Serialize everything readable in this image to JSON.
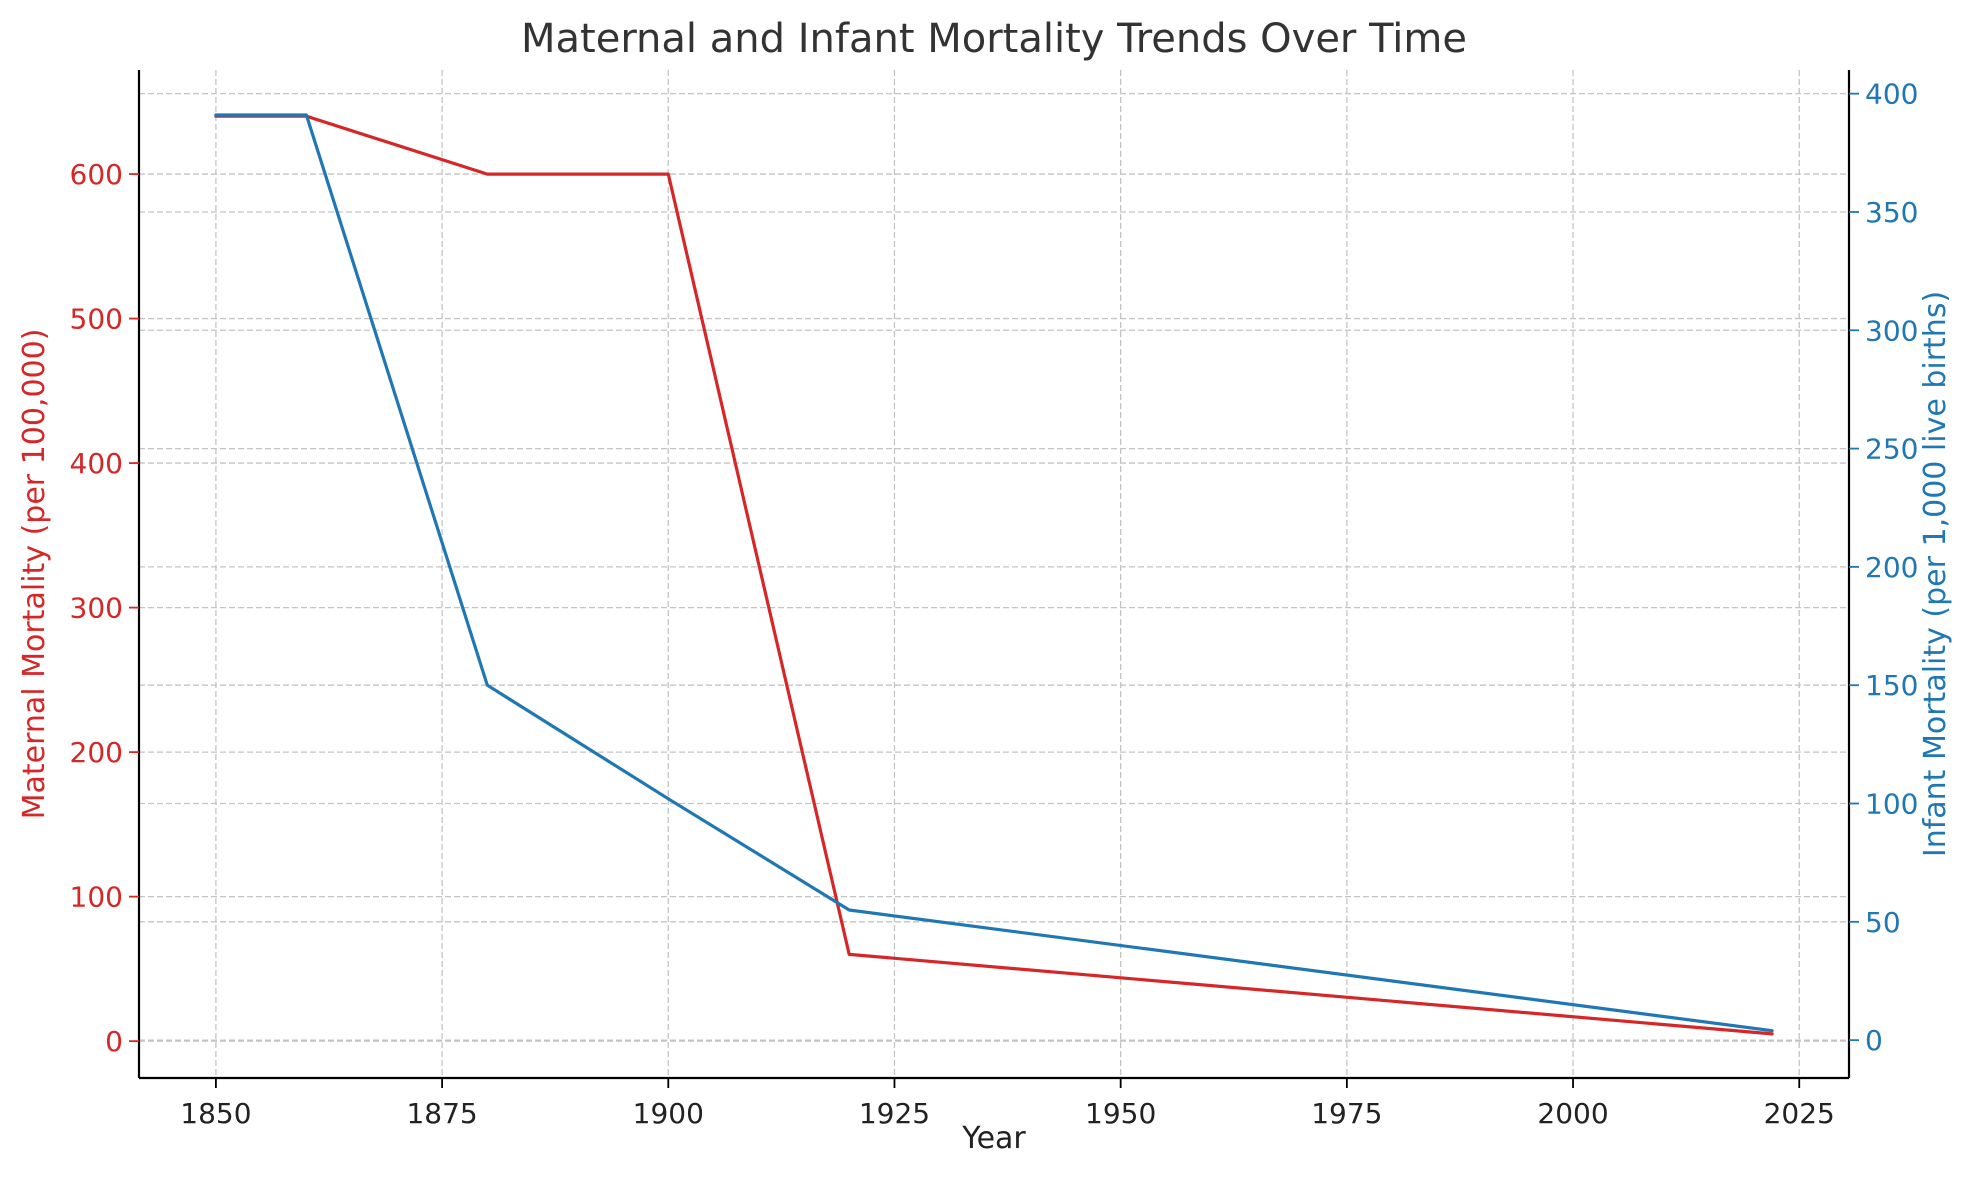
{
  "chart_data": {
    "type": "line",
    "title": "Maternal and Infant Mortality Trends Over Time",
    "xlabel": "Year",
    "x_ticks": [
      "1850",
      "1875",
      "1900",
      "1925",
      "1950",
      "1975",
      "2000",
      "2025"
    ],
    "xlim": [
      1841.5,
      2030.5
    ],
    "grid": true,
    "left_axis": {
      "label": "Maternal Mortality (per 100,000)",
      "color": "#d62728",
      "ylim": [
        -25.5,
        672
      ],
      "ticks": [
        "0",
        "100",
        "200",
        "300",
        "400",
        "500",
        "600"
      ]
    },
    "right_axis": {
      "label": "Infant Mortality (per 1,000 live births)",
      "color": "#1f77b4",
      "ylim": [
        -16,
        410
      ],
      "ticks": [
        "0",
        "50",
        "100",
        "150",
        "200",
        "250",
        "300",
        "350",
        "400"
      ]
    },
    "series": [
      {
        "name": "Maternal Mortality",
        "axis": "left",
        "color": "#d62728",
        "x": [
          1850,
          1860,
          1880,
          1900,
          1920,
          2022
        ],
        "values": [
          640,
          640,
          600,
          600,
          60,
          5
        ]
      },
      {
        "name": "Infant Mortality",
        "axis": "right",
        "color": "#1f77b4",
        "x": [
          1850,
          1860,
          1880,
          1900,
          1920,
          2022
        ],
        "values": [
          391,
          391,
          150,
          102,
          55,
          4
        ]
      }
    ]
  }
}
